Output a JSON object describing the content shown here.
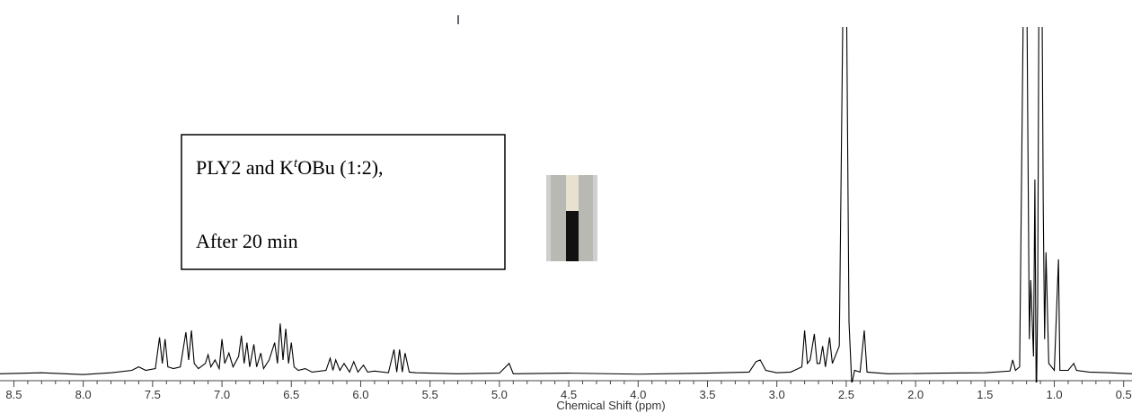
{
  "chart_data": {
    "type": "line",
    "x_label": "Chemical Shift (ppm)",
    "annotation": {
      "line1": [
        "PLY2 and K",
        "t",
        "OBu (1:2),"
      ],
      "line2": "After 20 min"
    },
    "color": "#000000",
    "xlim": [
      8.6,
      0.44
    ],
    "ylim": [
      -10,
      100
    ],
    "xticks": [
      8.5,
      {
        "value": 8,
        "label": "8.0"
      },
      7.5,
      {
        "value": 7,
        "label": "7.0"
      },
      6.5,
      {
        "value": 6,
        "label": "6.0"
      },
      5.5,
      {
        "value": 5,
        "label": "5.0"
      },
      4.5,
      {
        "value": 4,
        "label": "4.0"
      },
      3.5,
      {
        "value": 3,
        "label": "3.0"
      },
      2.5,
      {
        "value": 2,
        "label": "2.0"
      },
      1.5,
      {
        "value": 1,
        "label": "1.0"
      },
      0.5
    ],
    "x": [
      8.6,
      8.3,
      8.0,
      7.8,
      7.65,
      7.6,
      7.55,
      7.48,
      7.45,
      7.43,
      7.41,
      7.39,
      7.35,
      7.3,
      7.26,
      7.24,
      7.22,
      7.2,
      7.17,
      7.12,
      7.1,
      7.08,
      7.05,
      7.02,
      7.0,
      6.98,
      6.95,
      6.92,
      6.88,
      6.86,
      6.84,
      6.82,
      6.8,
      6.77,
      6.75,
      6.72,
      6.7,
      6.66,
      6.62,
      6.6,
      6.58,
      6.56,
      6.54,
      6.52,
      6.5,
      6.48,
      6.45,
      6.4,
      6.35,
      6.25,
      6.22,
      6.2,
      6.18,
      6.15,
      6.12,
      6.08,
      6.05,
      6.02,
      5.98,
      5.95,
      5.9,
      5.8,
      5.76,
      5.74,
      5.72,
      5.7,
      5.68,
      5.65,
      5.6,
      5.3,
      5.0,
      4.93,
      4.9,
      4.5,
      4.0,
      3.5,
      3.2,
      3.15,
      3.12,
      3.08,
      3.0,
      2.9,
      2.82,
      2.8,
      2.78,
      2.76,
      2.73,
      2.71,
      2.69,
      2.67,
      2.65,
      2.62,
      2.6,
      2.55,
      2.52,
      2.5,
      2.48,
      2.46,
      2.44,
      2.4,
      2.37,
      2.35,
      2.2,
      1.8,
      1.5,
      1.32,
      1.3,
      1.28,
      1.25,
      1.22,
      1.2,
      1.18,
      1.17,
      1.15,
      1.14,
      1.13,
      1.12,
      1.11,
      1.09,
      1.08,
      1.07,
      1.06,
      1.04,
      1.0,
      0.97,
      0.96,
      0.9,
      0.86,
      0.84,
      0.75,
      0.6,
      0.44
    ],
    "values": [
      0,
      0.3,
      -0.2,
      0.3,
      1,
      2,
      1,
      1.5,
      10.5,
      3,
      10,
      2,
      1.5,
      2,
      12,
      4,
      12.5,
      3,
      1.5,
      3,
      5.5,
      2,
      4,
      1.5,
      10,
      3,
      6,
      2,
      5,
      11,
      3,
      9,
      2,
      8.5,
      2,
      6,
      1.5,
      4,
      9,
      3,
      14.5,
      4,
      13,
      3,
      9,
      2,
      1,
      1.5,
      0.5,
      1,
      4.5,
      1,
      4,
      1,
      3,
      0.5,
      3.5,
      0.5,
      2.5,
      0.5,
      0.8,
      0.3,
      7,
      0.5,
      7,
      0.5,
      6,
      0.5,
      0.3,
      0,
      0.2,
      3,
      0,
      0.2,
      -0.1,
      0.2,
      0.5,
      3.5,
      4,
      1,
      0.3,
      0.5,
      2,
      12.5,
      3,
      4,
      11.5,
      3,
      3,
      8,
      2,
      10.5,
      3,
      8,
      120,
      120,
      15,
      -3,
      1,
      0.5,
      12.5,
      0.5,
      0,
      0.2,
      0.3,
      0.8,
      4,
      1,
      2,
      120,
      120,
      10,
      27,
      5,
      56,
      -10,
      20,
      120,
      120,
      49,
      10,
      35,
      3,
      1,
      33,
      1,
      1,
      3,
      1,
      0.5,
      0.3,
      0
    ]
  }
}
